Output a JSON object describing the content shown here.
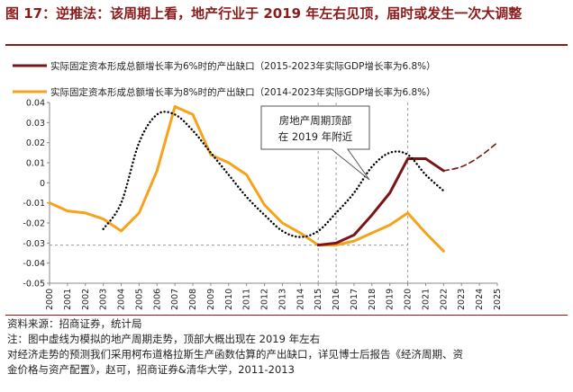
{
  "figure": {
    "title": "图 17：逆推法：该周期上看，地产行业于 2019 年左右见顶，届时或发生一次大调整",
    "source": "资料来源：招商证券，统计局",
    "note1": "注：图中虚线为模拟的地产周期走势，顶部大概出现在 2019 年左右",
    "note2": "对经济走势的预测我们采用柯布道格拉斯生产函数估算的产出缺口，详见博士后报告《经济周期、资",
    "note3": "金价格与资产配置》，赵可，招商证券&清华大学，2011-2013"
  },
  "colors": {
    "darkred": "#7b1416",
    "orange": "#f7a21b",
    "title": "#8b1a1a",
    "dotted": "#000000"
  },
  "chart_data": {
    "type": "line",
    "title": "",
    "xlabel": "",
    "ylabel": "",
    "x_ticks": [
      "2000",
      "2001",
      "2002",
      "2003",
      "2004",
      "2005",
      "2006",
      "2007",
      "2008",
      "2009",
      "2010",
      "2011",
      "2012",
      "2013",
      "2014",
      "2015",
      "2016",
      "2017",
      "2018",
      "2019",
      "2020",
      "2021",
      "2022",
      "2023",
      "2024",
      "2025"
    ],
    "y_ticks": [
      "0.04",
      "0.03",
      "0.02",
      "0.01",
      "0",
      "-0.01",
      "-0.02",
      "-0.03",
      "-0.04",
      "-0.05"
    ],
    "ylim": [
      -0.05,
      0.04
    ],
    "xlim": [
      2000,
      2025
    ],
    "legend": [
      {
        "label": "实际固定资本形成总额增长率为6%时的产出缺口（2015-2023年实际GDP增长率为6.8%）",
        "color": "#7b1416"
      },
      {
        "label": "实际固定资本形成总额增长率为8%时的产出缺口（2014-2023年实际GDP增长率为6.8%）",
        "color": "#f7a21b"
      }
    ],
    "series": [
      {
        "name": "实际固定资本形成总额增长率为8%时的产出缺口（2014-2023年实际GDP增长率为6.8%）",
        "style": "solid",
        "color": "#f7a21b",
        "x": [
          2000,
          2001,
          2002,
          2003,
          2004,
          2005,
          2006,
          2007,
          2008,
          2009,
          2010,
          2011,
          2012,
          2013,
          2014,
          2015,
          2016,
          2017,
          2018,
          2019,
          2020,
          2021,
          2022
        ],
        "y": [
          -0.01,
          -0.014,
          -0.015,
          -0.018,
          -0.024,
          -0.015,
          0.006,
          0.038,
          0.034,
          0.014,
          0.01,
          0.004,
          -0.011,
          -0.02,
          -0.025,
          -0.031,
          -0.031,
          -0.029,
          -0.025,
          -0.021,
          -0.015,
          -0.025,
          -0.034
        ]
      },
      {
        "name": "实际固定资本形成总额增长率为6%时的产出缺口（2015-2023年实际GDP增长率为6.8%）",
        "style": "solid",
        "color": "#7b1416",
        "x": [
          2015,
          2016,
          2017,
          2018,
          2019,
          2020,
          2021,
          2022
        ],
        "y": [
          -0.031,
          -0.03,
          -0.026,
          -0.016,
          -0.005,
          0.012,
          0.012,
          0.006
        ]
      },
      {
        "name": "",
        "style": "dashed",
        "color": "#7b1416",
        "x": [
          2022,
          2023,
          2024,
          2025
        ],
        "y": [
          0.006,
          0.008,
          0.013,
          0.02
        ]
      },
      {
        "name": "",
        "style": "dotted",
        "color": "#000000",
        "x": [
          2003,
          2004,
          2005,
          2006,
          2007,
          2008,
          2009,
          2010,
          2011,
          2012,
          2013,
          2014,
          2015,
          2016,
          2017,
          2018,
          2019,
          2020,
          2021,
          2022
        ],
        "y": [
          -0.023,
          -0.01,
          0.02,
          0.034,
          0.034,
          0.026,
          0.015,
          0.004,
          -0.007,
          -0.016,
          -0.024,
          -0.027,
          -0.024,
          -0.015,
          -0.005,
          0.008,
          0.015,
          0.014,
          0.004,
          -0.004
        ]
      }
    ],
    "annotation": {
      "text_line1": "房地产周期顶部",
      "text_line2": "在 2019 年附近"
    },
    "reference_lines": {
      "vertical_x": [
        2015,
        2016,
        2020
      ],
      "horizontal_y": -0.031
    }
  }
}
